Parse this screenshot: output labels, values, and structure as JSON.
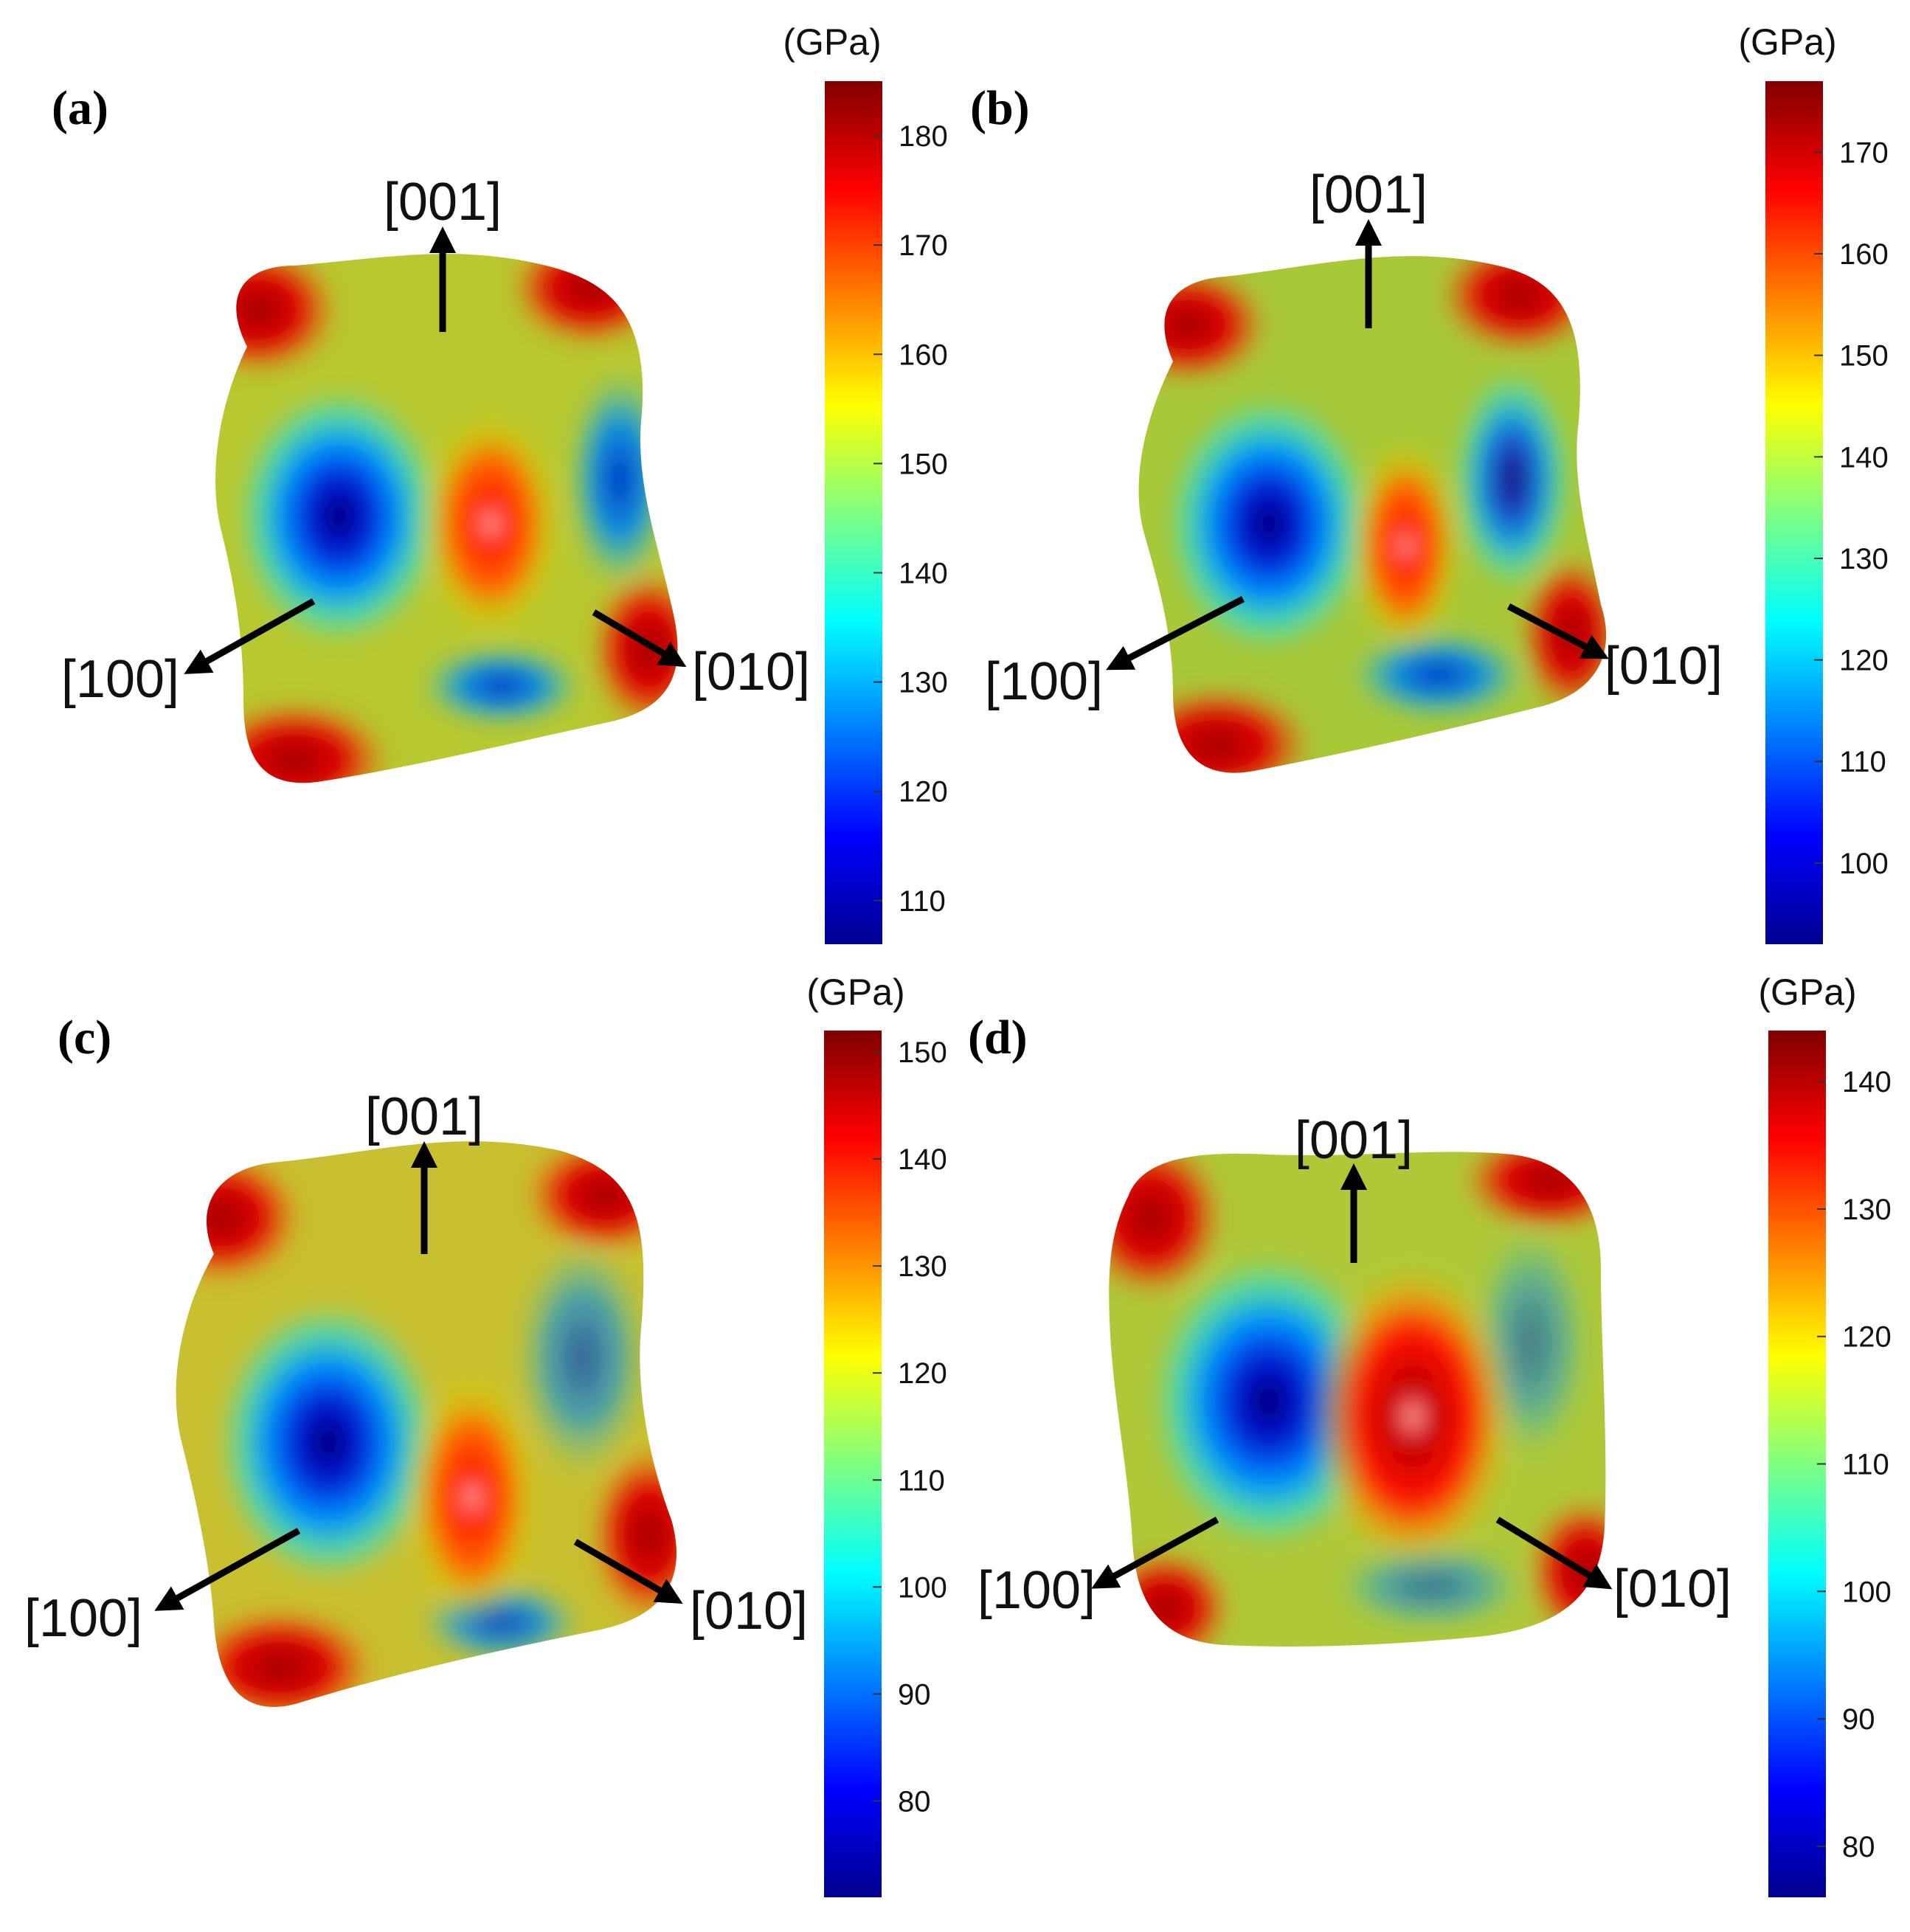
{
  "panels": [
    {
      "label": "(a)",
      "unit": "(GPa)",
      "colorbar": {
        "min": 106,
        "max": 185,
        "ticks": [
          110,
          120,
          130,
          140,
          150,
          160,
          170,
          180
        ]
      },
      "axes": {
        "up": "[001]",
        "left": "[100]",
        "right": "[010]"
      }
    },
    {
      "label": "(b)",
      "unit": "(GPa)",
      "colorbar": {
        "min": 92,
        "max": 177,
        "ticks": [
          100,
          110,
          120,
          130,
          140,
          150,
          160,
          170
        ]
      },
      "axes": {
        "up": "[001]",
        "left": "[100]",
        "right": "[010]"
      }
    },
    {
      "label": "(c)",
      "unit": "(GPa)",
      "colorbar": {
        "min": 71,
        "max": 152,
        "ticks": [
          80,
          90,
          100,
          110,
          120,
          130,
          140,
          150
        ]
      },
      "axes": {
        "up": "[001]",
        "left": "[100]",
        "right": "[010]"
      }
    },
    {
      "label": "(d)",
      "unit": "(GPa)",
      "colorbar": {
        "min": 76,
        "max": 144,
        "ticks": [
          80,
          90,
          100,
          110,
          120,
          130,
          140
        ]
      },
      "axes": {
        "up": "[001]",
        "left": "[100]",
        "right": "[010]"
      }
    }
  ],
  "colormap": [
    "#00008f",
    "#0000ff",
    "#0080ff",
    "#00ffff",
    "#80ff80",
    "#ffff00",
    "#ff8000",
    "#ff0000",
    "#800000"
  ]
}
